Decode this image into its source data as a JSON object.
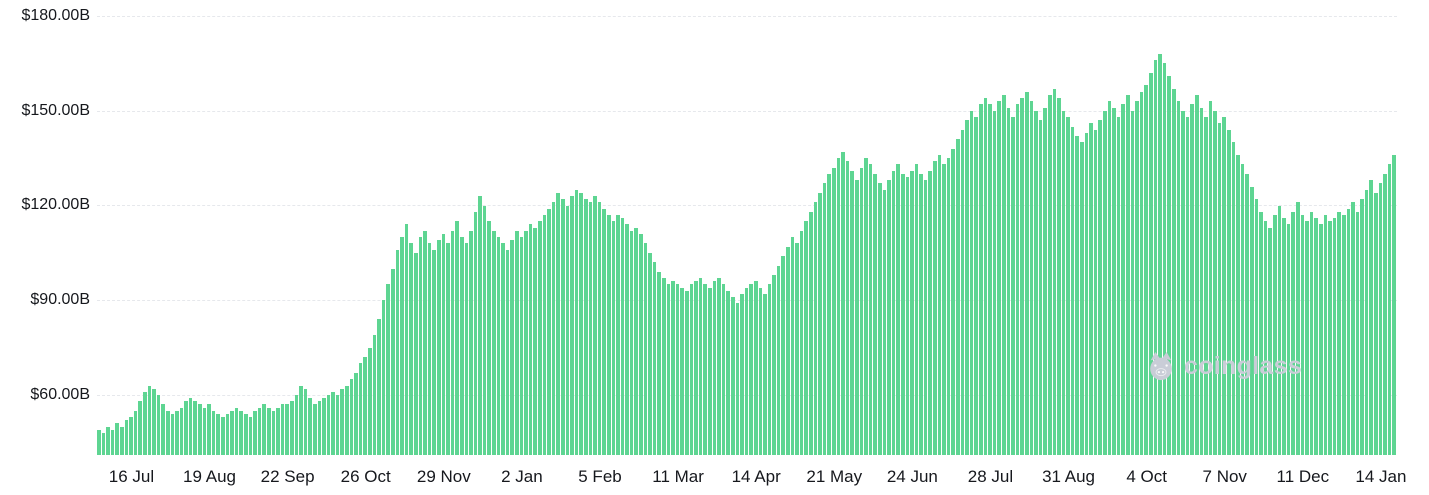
{
  "chart_data": {
    "type": "bar",
    "title": "",
    "xlabel": "",
    "ylabel": "",
    "ylim": [
      41,
      180
    ],
    "baseline": 41,
    "ymax": 180,
    "grid": true,
    "legend": "none",
    "bar_color": "#5ed592",
    "y_ticks": [
      {
        "label": "$180.00B",
        "value": 180
      },
      {
        "label": "$150.00B",
        "value": 150
      },
      {
        "label": "$120.00B",
        "value": 120
      },
      {
        "label": "$90.00B",
        "value": 90
      },
      {
        "label": "$60.00B",
        "value": 60
      }
    ],
    "x_tick_labels": [
      "16 Jul",
      "19 Aug",
      "22 Sep",
      "26 Oct",
      "29 Nov",
      "2 Jan",
      "5 Feb",
      "11 Mar",
      "14 Apr",
      "21 May",
      "24 Jun",
      "28 Jul",
      "31 Aug",
      "4 Oct",
      "7 Nov",
      "11 Dec",
      "14 Jan"
    ],
    "x_tick_indices": [
      7,
      24,
      41,
      58,
      75,
      92,
      109,
      126,
      143,
      160,
      177,
      194,
      211,
      228,
      245,
      262,
      279
    ],
    "values": [
      49,
      48,
      50,
      49,
      51,
      50,
      52,
      53,
      55,
      58,
      61,
      63,
      62,
      60,
      57,
      55,
      54,
      55,
      56,
      58,
      59,
      58,
      57,
      56,
      57,
      55,
      54,
      53,
      54,
      55,
      56,
      55,
      54,
      53,
      55,
      56,
      57,
      56,
      55,
      56,
      57,
      57,
      58,
      60,
      63,
      62,
      59,
      57,
      58,
      59,
      60,
      61,
      60,
      62,
      63,
      65,
      67,
      70,
      72,
      75,
      79,
      84,
      90,
      95,
      100,
      106,
      110,
      114,
      108,
      105,
      110,
      112,
      108,
      106,
      109,
      111,
      108,
      112,
      115,
      110,
      108,
      112,
      118,
      123,
      120,
      115,
      112,
      110,
      108,
      106,
      109,
      112,
      110,
      112,
      114,
      113,
      115,
      117,
      119,
      121,
      124,
      122,
      120,
      123,
      125,
      124,
      122,
      121,
      123,
      121,
      119,
      117,
      115,
      117,
      116,
      114,
      112,
      113,
      111,
      108,
      105,
      102,
      99,
      97,
      95,
      96,
      95,
      94,
      93,
      95,
      96,
      97,
      95,
      94,
      96,
      97,
      95,
      93,
      91,
      89,
      92,
      94,
      95,
      96,
      94,
      92,
      95,
      98,
      101,
      104,
      107,
      110,
      108,
      112,
      115,
      118,
      121,
      124,
      127,
      130,
      132,
      135,
      137,
      134,
      131,
      128,
      132,
      135,
      133,
      130,
      127,
      125,
      128,
      131,
      133,
      130,
      129,
      131,
      133,
      130,
      128,
      131,
      134,
      136,
      133,
      135,
      138,
      141,
      144,
      147,
      150,
      148,
      152,
      154,
      152,
      150,
      153,
      155,
      151,
      148,
      152,
      154,
      156,
      153,
      150,
      147,
      151,
      155,
      157,
      154,
      150,
      148,
      145,
      142,
      140,
      143,
      146,
      144,
      147,
      150,
      153,
      151,
      148,
      152,
      155,
      150,
      153,
      156,
      158,
      162,
      166,
      168,
      165,
      161,
      157,
      153,
      150,
      148,
      152,
      155,
      151,
      148,
      153,
      150,
      146,
      148,
      144,
      140,
      136,
      133,
      130,
      126,
      122,
      118,
      115,
      113,
      117,
      120,
      116,
      114,
      118,
      121,
      117,
      115,
      118,
      116,
      114,
      117,
      115,
      116,
      118,
      117,
      119,
      121,
      118,
      122,
      125,
      128,
      124,
      127,
      130,
      133,
      136
    ]
  },
  "watermark": {
    "label": "coinglass",
    "icon": "pig-icon",
    "color": "#c9cdd7"
  },
  "colors": {
    "background": "#ffffff",
    "grid": "#e6e8ec",
    "axis_text": "#16181d",
    "bar": "#5ed592"
  }
}
